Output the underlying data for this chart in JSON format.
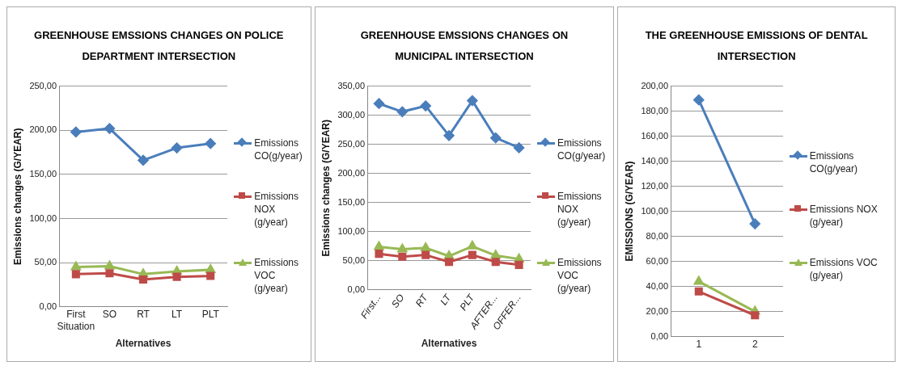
{
  "chart_data": [
    {
      "type": "line",
      "title": "GREENHOUSE EMSSIONS CHANGES ON POLICE DEPARTMENT INTERSECTION",
      "xlabel": "Alternatives",
      "ylabel": "Emissions changes (G/YEAR)",
      "categories": [
        "First Situation",
        "SO",
        "RT",
        "LT",
        "PLT"
      ],
      "series": [
        {
          "name": "Emissions CO(g/year)",
          "color": "#4a7ebb",
          "marker": "diamond",
          "values": [
            198,
            202,
            166,
            180,
            185
          ]
        },
        {
          "name": "Emissions NOX (g/year)",
          "color": "#be4b48",
          "marker": "square",
          "values": [
            37,
            38,
            31,
            34,
            35
          ]
        },
        {
          "name": "Emissions VOC (g/year)",
          "color": "#98b954",
          "marker": "triangle",
          "values": [
            45,
            46,
            37,
            40,
            42
          ]
        }
      ],
      "ylim": [
        0,
        250
      ],
      "yticks": [
        {
          "value": 0,
          "label": "0,00"
        },
        {
          "value": 50,
          "label": "50,00"
        },
        {
          "value": 100,
          "label": "100,00"
        },
        {
          "value": 150,
          "label": "150,00"
        },
        {
          "value": 200,
          "label": "200,00"
        },
        {
          "value": 250,
          "label": "250,00"
        }
      ],
      "grid": "y",
      "legend": "right"
    },
    {
      "type": "line",
      "title": "GREENHOUSE EMSSIONS CHANGES ON MUNICIPAL INTERSECTION",
      "xlabel": "Alternatives",
      "ylabel": "Emissions changes (G/YEAR)",
      "categories": [
        "First...",
        "SO",
        "RT",
        "LT",
        "PLT",
        "AFTER...",
        "OFFER..."
      ],
      "series": [
        {
          "name": "Emissions CO(g/year)",
          "color": "#4a7ebb",
          "marker": "diamond",
          "values": [
            320,
            306,
            316,
            265,
            325,
            261,
            244
          ]
        },
        {
          "name": "Emissions NOX (g/year)",
          "color": "#be4b48",
          "marker": "square",
          "values": [
            62,
            57,
            60,
            48,
            60,
            48,
            43
          ]
        },
        {
          "name": "Emissions VOC (g/year)",
          "color": "#98b954",
          "marker": "triangle",
          "values": [
            74,
            70,
            72,
            58,
            75,
            59,
            53
          ]
        }
      ],
      "ylim": [
        0,
        350
      ],
      "yticks": [
        {
          "value": 0,
          "label": "0,00"
        },
        {
          "value": 50,
          "label": "50,00"
        },
        {
          "value": 100,
          "label": "100,00"
        },
        {
          "value": 150,
          "label": "150,00"
        },
        {
          "value": 200,
          "label": "200,00"
        },
        {
          "value": 250,
          "label": "250,00"
        },
        {
          "value": 300,
          "label": "300,00"
        },
        {
          "value": 350,
          "label": "350,00"
        }
      ],
      "grid": "y",
      "legend": "right"
    },
    {
      "type": "line",
      "title": "THE GREENHOUSE EMISSIONS OF DENTAL INTERSECTION",
      "ylabel": "EMISSIONS (G/YEAR)",
      "categories": [
        "1",
        "2"
      ],
      "series": [
        {
          "name": "Emissions CO(g/year)",
          "color": "#4a7ebb",
          "marker": "diamond",
          "values": [
            189,
            90
          ]
        },
        {
          "name": "Emissions NOX (g/year)",
          "color": "#be4b48",
          "marker": "square",
          "values": [
            36,
            17
          ]
        },
        {
          "name": "Emissions VOC (g/year)",
          "color": "#98b954",
          "marker": "triangle",
          "values": [
            44,
            20
          ]
        }
      ],
      "ylim": [
        0,
        200
      ],
      "yticks": [
        {
          "value": 0,
          "label": "0,00"
        },
        {
          "value": 20,
          "label": "20,00"
        },
        {
          "value": 40,
          "label": "40,00"
        },
        {
          "value": 60,
          "label": "60,00"
        },
        {
          "value": 80,
          "label": "80,00"
        },
        {
          "value": 100,
          "label": "100,00"
        },
        {
          "value": 120,
          "label": "120,00"
        },
        {
          "value": 140,
          "label": "140,00"
        },
        {
          "value": 160,
          "label": "160,00"
        },
        {
          "value": 180,
          "label": "180,00"
        },
        {
          "value": 200,
          "label": "200,00"
        }
      ],
      "grid": "y",
      "legend": "right"
    }
  ]
}
